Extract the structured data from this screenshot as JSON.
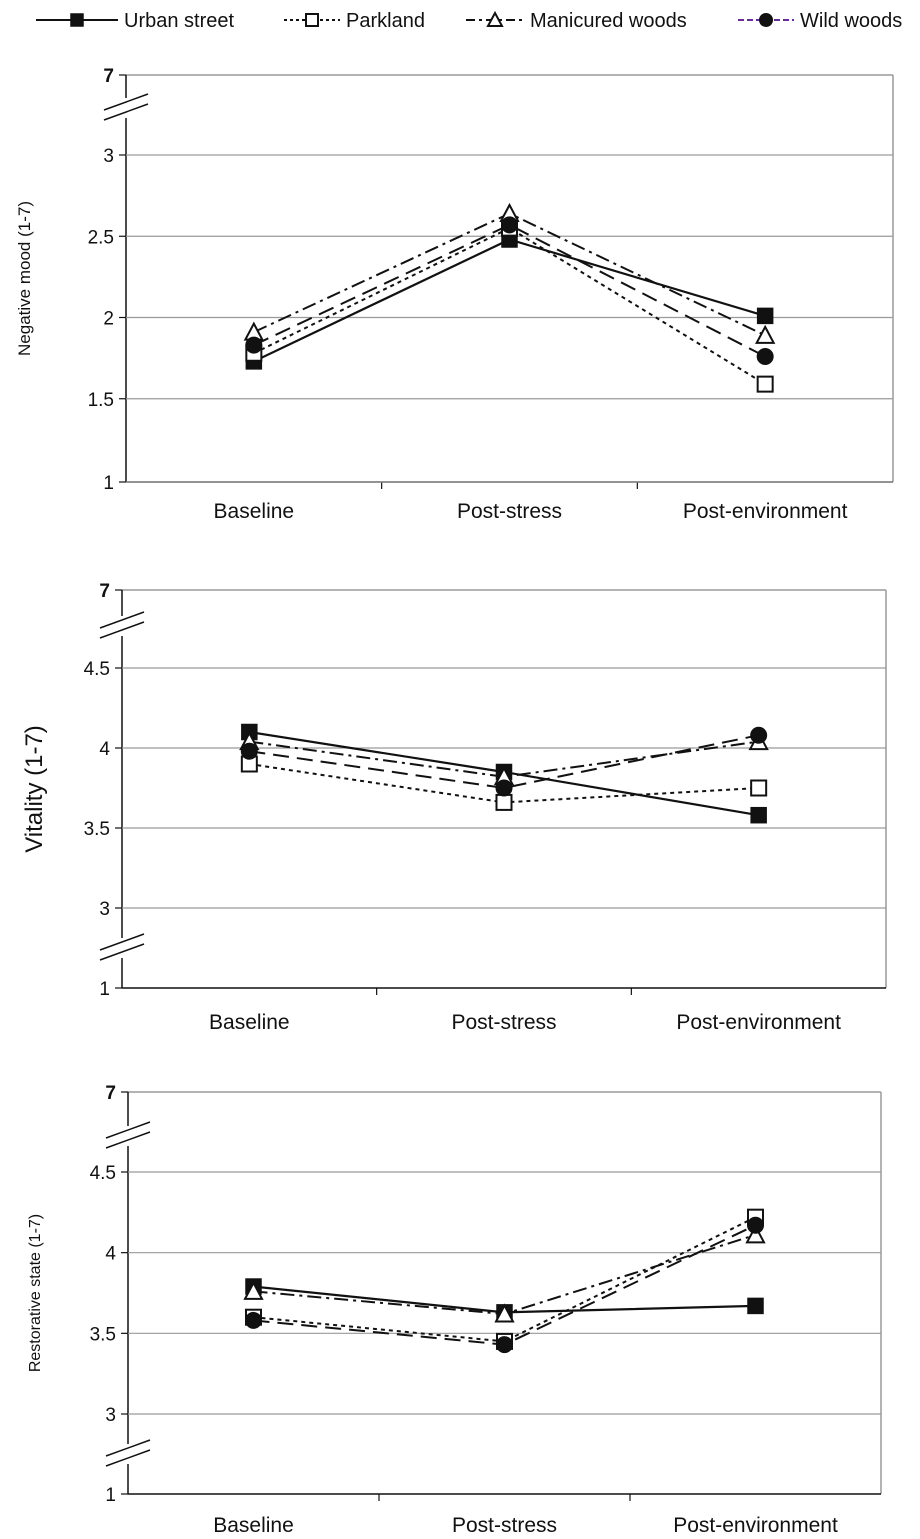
{
  "legend": [
    {
      "name": "Urban street",
      "marker": "square-filled",
      "dash": "solid"
    },
    {
      "name": "Parkland",
      "marker": "square-open",
      "dash": "dotted"
    },
    {
      "name": "Manicured woods",
      "marker": "triangle-open",
      "dash": "dashdot"
    },
    {
      "name": "Wild woods",
      "marker": "circle-filled",
      "dash": "dashed"
    }
  ],
  "colors": {
    "lines": "#111111",
    "grid": "#9a9a9a",
    "legend_accent": "#6a2aa0"
  },
  "chart_data": [
    {
      "type": "line",
      "ylabel": "Negative mood (1-7)",
      "categories": [
        "Baseline",
        "Post-stress",
        "Post-environment"
      ],
      "yticks": [
        "1",
        "1.5",
        "2",
        "2.5",
        "3",
        "7"
      ],
      "ylim": [
        1,
        3
      ],
      "axis_break": "between 3 and 7",
      "grid": true,
      "series": [
        {
          "name": "Urban street",
          "values": [
            1.73,
            2.48,
            2.01
          ]
        },
        {
          "name": "Parkland",
          "values": [
            1.78,
            2.55,
            1.59
          ]
        },
        {
          "name": "Manicured woods",
          "values": [
            1.91,
            2.64,
            1.89
          ]
        },
        {
          "name": "Wild woods",
          "values": [
            1.83,
            2.57,
            1.76
          ]
        }
      ]
    },
    {
      "type": "line",
      "ylabel": "Vitality (1-7)",
      "categories": [
        "Baseline",
        "Post-stress",
        "Post-environment"
      ],
      "yticks": [
        "1",
        "3",
        "3.5",
        "4",
        "4.5",
        "7"
      ],
      "ylim": [
        3,
        4.5
      ],
      "axis_break": "between 1 and 3, and between 4.5 and 7",
      "grid": true,
      "series": [
        {
          "name": "Urban street",
          "values": [
            4.1,
            3.85,
            3.58
          ]
        },
        {
          "name": "Parkland",
          "values": [
            3.9,
            3.66,
            3.75
          ]
        },
        {
          "name": "Manicured woods",
          "values": [
            4.04,
            3.82,
            4.04
          ]
        },
        {
          "name": "Wild woods",
          "values": [
            3.98,
            3.75,
            4.08
          ]
        }
      ]
    },
    {
      "type": "line",
      "ylabel": "Restorative state (1-7)",
      "categories": [
        "Baseline",
        "Post-stress",
        "Post-environment"
      ],
      "yticks": [
        "1",
        "3",
        "3.5",
        "4",
        "4.5",
        "7"
      ],
      "ylim": [
        3,
        4.5
      ],
      "axis_break": "between 1 and 3, and between 4.5 and 7",
      "grid": true,
      "series": [
        {
          "name": "Urban street",
          "values": [
            3.79,
            3.63,
            3.67
          ]
        },
        {
          "name": "Parkland",
          "values": [
            3.6,
            3.45,
            4.22
          ]
        },
        {
          "name": "Manicured woods",
          "values": [
            3.76,
            3.62,
            4.11
          ]
        },
        {
          "name": "Wild woods",
          "values": [
            3.58,
            3.43,
            4.17
          ]
        }
      ]
    }
  ]
}
